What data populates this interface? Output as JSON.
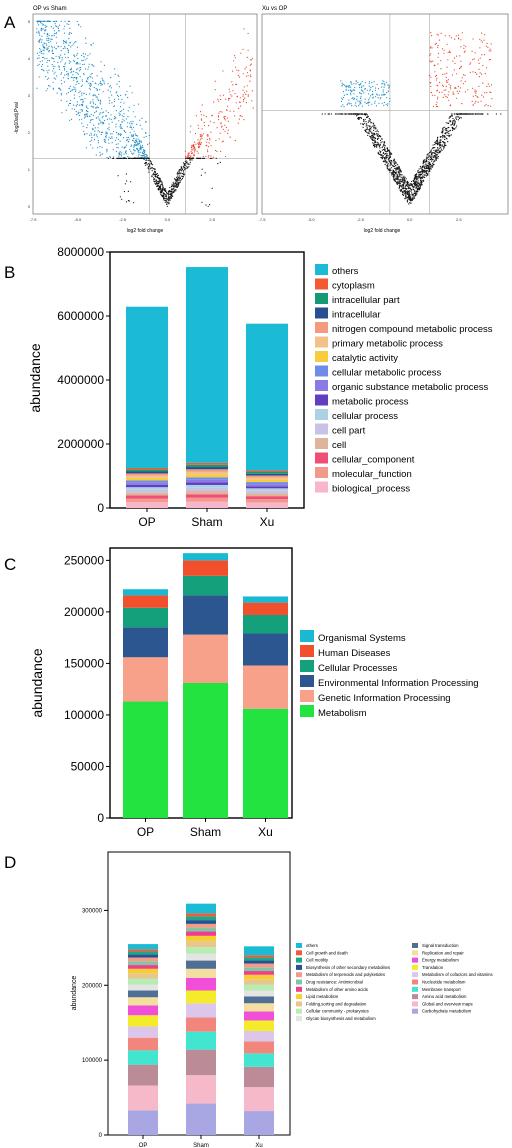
{
  "panels": [
    {
      "letter": "A"
    },
    {
      "letter": "B"
    },
    {
      "letter": "C"
    },
    {
      "letter": "D"
    }
  ],
  "chart_data": [
    {
      "panel": "A-left",
      "type": "scatter",
      "title": "OP vs Sham",
      "xlabel": "log2 fold change",
      "ylabel": "-log10adj.Pval",
      "xlim": [
        -7.5,
        5
      ],
      "ylim": [
        -0.2,
        5.2
      ],
      "x_ticks": [
        "-7.5",
        "-5.0",
        "-2.5",
        "0.0",
        "2.5"
      ],
      "x_tick_values": [
        -7.5,
        -5.0,
        -2.5,
        0.0,
        2.5
      ],
      "y_ticks": [
        "0",
        "1",
        "2",
        "3",
        "4",
        "5"
      ],
      "y_tick_values": [
        0,
        1,
        2,
        3,
        4,
        5
      ],
      "threshold_x": [
        -1,
        1
      ],
      "threshold_y": 1.3,
      "colors": {
        "down": "#1f8fc6",
        "up": "#e8432a",
        "ns": "#111111"
      }
    },
    {
      "panel": "A-right",
      "type": "scatter",
      "title": "Xu vs OP",
      "xlabel": "log2 fold change",
      "ylabel": "",
      "xlim": [
        -7.5,
        5
      ],
      "ylim": [
        -0.1,
        2.6
      ],
      "x_ticks": [
        "-7.5",
        "-5.0",
        "-2.5",
        "0.0",
        "2.5"
      ],
      "x_tick_values": [
        -7.5,
        -5.0,
        -2.5,
        0.0,
        2.5
      ],
      "y_ticks": [],
      "threshold_x": [
        -1,
        1
      ],
      "threshold_y": 1.3,
      "colors": {
        "down": "#1f8fc6",
        "up": "#e8432a",
        "ns": "#111111"
      }
    },
    {
      "panel": "B",
      "type": "bar",
      "stacked": true,
      "ylabel": "abundance",
      "ylim": [
        0,
        8000000
      ],
      "y_ticks": [
        "0",
        "2000000",
        "4000000",
        "6000000",
        "8000000"
      ],
      "y_tick_values": [
        0,
        2000000,
        4000000,
        6000000,
        8000000
      ],
      "categories": [
        "OP",
        "Sham",
        "Xu"
      ],
      "legend_position": "right",
      "series": [
        {
          "name": "biological_process",
          "color": "#f7b6cc",
          "values": [
            180000,
            200000,
            170000
          ]
        },
        {
          "name": "molecular_function",
          "color": "#f19a8b",
          "values": [
            110000,
            120000,
            105000
          ]
        },
        {
          "name": "cellular_component",
          "color": "#ef4f73",
          "values": [
            100000,
            110000,
            95000
          ]
        },
        {
          "name": "cell",
          "color": "#deb59a",
          "values": [
            90000,
            100000,
            85000
          ]
        },
        {
          "name": "cell part",
          "color": "#c9c2e6",
          "values": [
            90000,
            100000,
            85000
          ]
        },
        {
          "name": "cellular process",
          "color": "#a9d3e2",
          "values": [
            80000,
            90000,
            75000
          ]
        },
        {
          "name": "metabolic process",
          "color": "#5f3fc0",
          "values": [
            70000,
            80000,
            65000
          ]
        },
        {
          "name": "organic substance metabolic process",
          "color": "#8c79e3",
          "values": [
            70000,
            80000,
            65000
          ]
        },
        {
          "name": "cellular metabolic process",
          "color": "#6f8ce8",
          "values": [
            70000,
            80000,
            65000
          ]
        },
        {
          "name": "catalytic activity",
          "color": "#f7cd3d",
          "values": [
            80000,
            90000,
            75000
          ]
        },
        {
          "name": "primary metabolic process",
          "color": "#f3c28a",
          "values": [
            70000,
            80000,
            65000
          ]
        },
        {
          "name": "nitrogen compound metabolic process",
          "color": "#f49a7e",
          "values": [
            70000,
            80000,
            65000
          ]
        },
        {
          "name": "intracellular",
          "color": "#284f8f",
          "values": [
            60000,
            70000,
            55000
          ]
        },
        {
          "name": "intracellular part",
          "color": "#159a76",
          "values": [
            60000,
            70000,
            55000
          ]
        },
        {
          "name": "cytoplasm",
          "color": "#f25a34",
          "values": [
            50000,
            60000,
            45000
          ]
        },
        {
          "name": "others",
          "color": "#1bbbd6",
          "values": [
            5040000,
            6120000,
            4590000
          ]
        }
      ]
    },
    {
      "panel": "C",
      "type": "bar",
      "stacked": true,
      "ylabel": "abundance",
      "ylim": [
        0,
        262000
      ],
      "y_ticks": [
        "0",
        "50000",
        "100000",
        "150000",
        "200000",
        "250000"
      ],
      "y_tick_values": [
        0,
        50000,
        100000,
        150000,
        200000,
        250000
      ],
      "categories": [
        "OP",
        "Sham",
        "Xu"
      ],
      "legend_position": "right",
      "series": [
        {
          "name": "Metabolism",
          "color": "#22e33f",
          "values": [
            113000,
            131000,
            106000
          ]
        },
        {
          "name": "Genetic Information Processing",
          "color": "#f7a18a",
          "values": [
            43000,
            47000,
            42000
          ]
        },
        {
          "name": "Environmental Information Processing",
          "color": "#2b5690",
          "values": [
            29000,
            38000,
            31000
          ]
        },
        {
          "name": "Cellular Processes",
          "color": "#13a07a",
          "values": [
            19000,
            19000,
            18000
          ]
        },
        {
          "name": "Human Diseases",
          "color": "#f2502c",
          "values": [
            12000,
            15000,
            12000
          ]
        },
        {
          "name": "Organismal Systems",
          "color": "#1ab9d3",
          "values": [
            6000,
            7000,
            6000
          ]
        }
      ]
    },
    {
      "panel": "D",
      "type": "bar",
      "stacked": true,
      "ylabel": "abundance",
      "ylim": [
        0,
        378000
      ],
      "y_ticks": [
        "0",
        "100000",
        "200000",
        "300000"
      ],
      "y_tick_values": [
        0,
        100000,
        200000,
        300000
      ],
      "categories": [
        "OP",
        "Sham",
        "Xu"
      ],
      "legend_position": "right",
      "legend_columns": 2,
      "series": [
        {
          "name": "Carbohydrate metabolism",
          "color": "#a9a7e3",
          "values": [
            33000,
            42000,
            32000
          ]
        },
        {
          "name": "Global and overview maps",
          "color": "#f6b9c9",
          "values": [
            33000,
            38000,
            32000
          ]
        },
        {
          "name": "Amino acid metabolism",
          "color": "#bb8c98",
          "values": [
            28000,
            34000,
            27000
          ]
        },
        {
          "name": "Membrane transport",
          "color": "#42e6d0",
          "values": [
            19000,
            24000,
            18000
          ]
        },
        {
          "name": "Nucleotide metabolism",
          "color": "#f3867c",
          "values": [
            17000,
            19000,
            16000
          ]
        },
        {
          "name": "Metabolism of cofactors and vitamins",
          "color": "#dcc7ea",
          "values": [
            15000,
            19000,
            14000
          ]
        },
        {
          "name": "Translation",
          "color": "#f4ec2a",
          "values": [
            15000,
            17000,
            14000
          ]
        },
        {
          "name": "Energy metabolism",
          "color": "#f04fda",
          "values": [
            13000,
            17000,
            12000
          ]
        },
        {
          "name": "Replication and repair",
          "color": "#f3dfa0",
          "values": [
            11000,
            12000,
            11000
          ]
        },
        {
          "name": "Signal transduction",
          "color": "#4f6f94",
          "values": [
            9000,
            11000,
            9000
          ]
        },
        {
          "name": "Glycan biosynthesis and metabolism",
          "color": "#e4e4e4",
          "values": [
            8000,
            9000,
            8000
          ]
        },
        {
          "name": "Cellular community - prokaryotes",
          "color": "#b9ecb3",
          "values": [
            8000,
            9000,
            8000
          ]
        },
        {
          "name": "Folding,sorting and degradation",
          "color": "#e8c68f",
          "values": [
            7000,
            8000,
            7000
          ]
        },
        {
          "name": "Lipid metabolism",
          "color": "#f7cf2e",
          "values": [
            6000,
            7000,
            6000
          ]
        },
        {
          "name": "Metabolism of other amino acids",
          "color": "#ef3f8c",
          "values": [
            5000,
            6000,
            5000
          ]
        },
        {
          "name": "Drug resistance: Antimicrobial",
          "color": "#7fc6a4",
          "values": [
            5000,
            5000,
            5000
          ]
        },
        {
          "name": "Metabolism of terpenoids and polyketides",
          "color": "#f79a88",
          "values": [
            5000,
            5000,
            5000
          ]
        },
        {
          "name": "Biosynthesis of other secondary metabolites",
          "color": "#28528f",
          "values": [
            4000,
            5000,
            4000
          ]
        },
        {
          "name": "Cell motility",
          "color": "#1aa78c",
          "values": [
            4000,
            5000,
            4000
          ]
        },
        {
          "name": "Cell growth and death",
          "color": "#f15b3a",
          "values": [
            3000,
            4000,
            3000
          ]
        },
        {
          "name": "others",
          "color": "#1abbd4",
          "values": [
            7000,
            13000,
            12000
          ]
        }
      ]
    }
  ]
}
